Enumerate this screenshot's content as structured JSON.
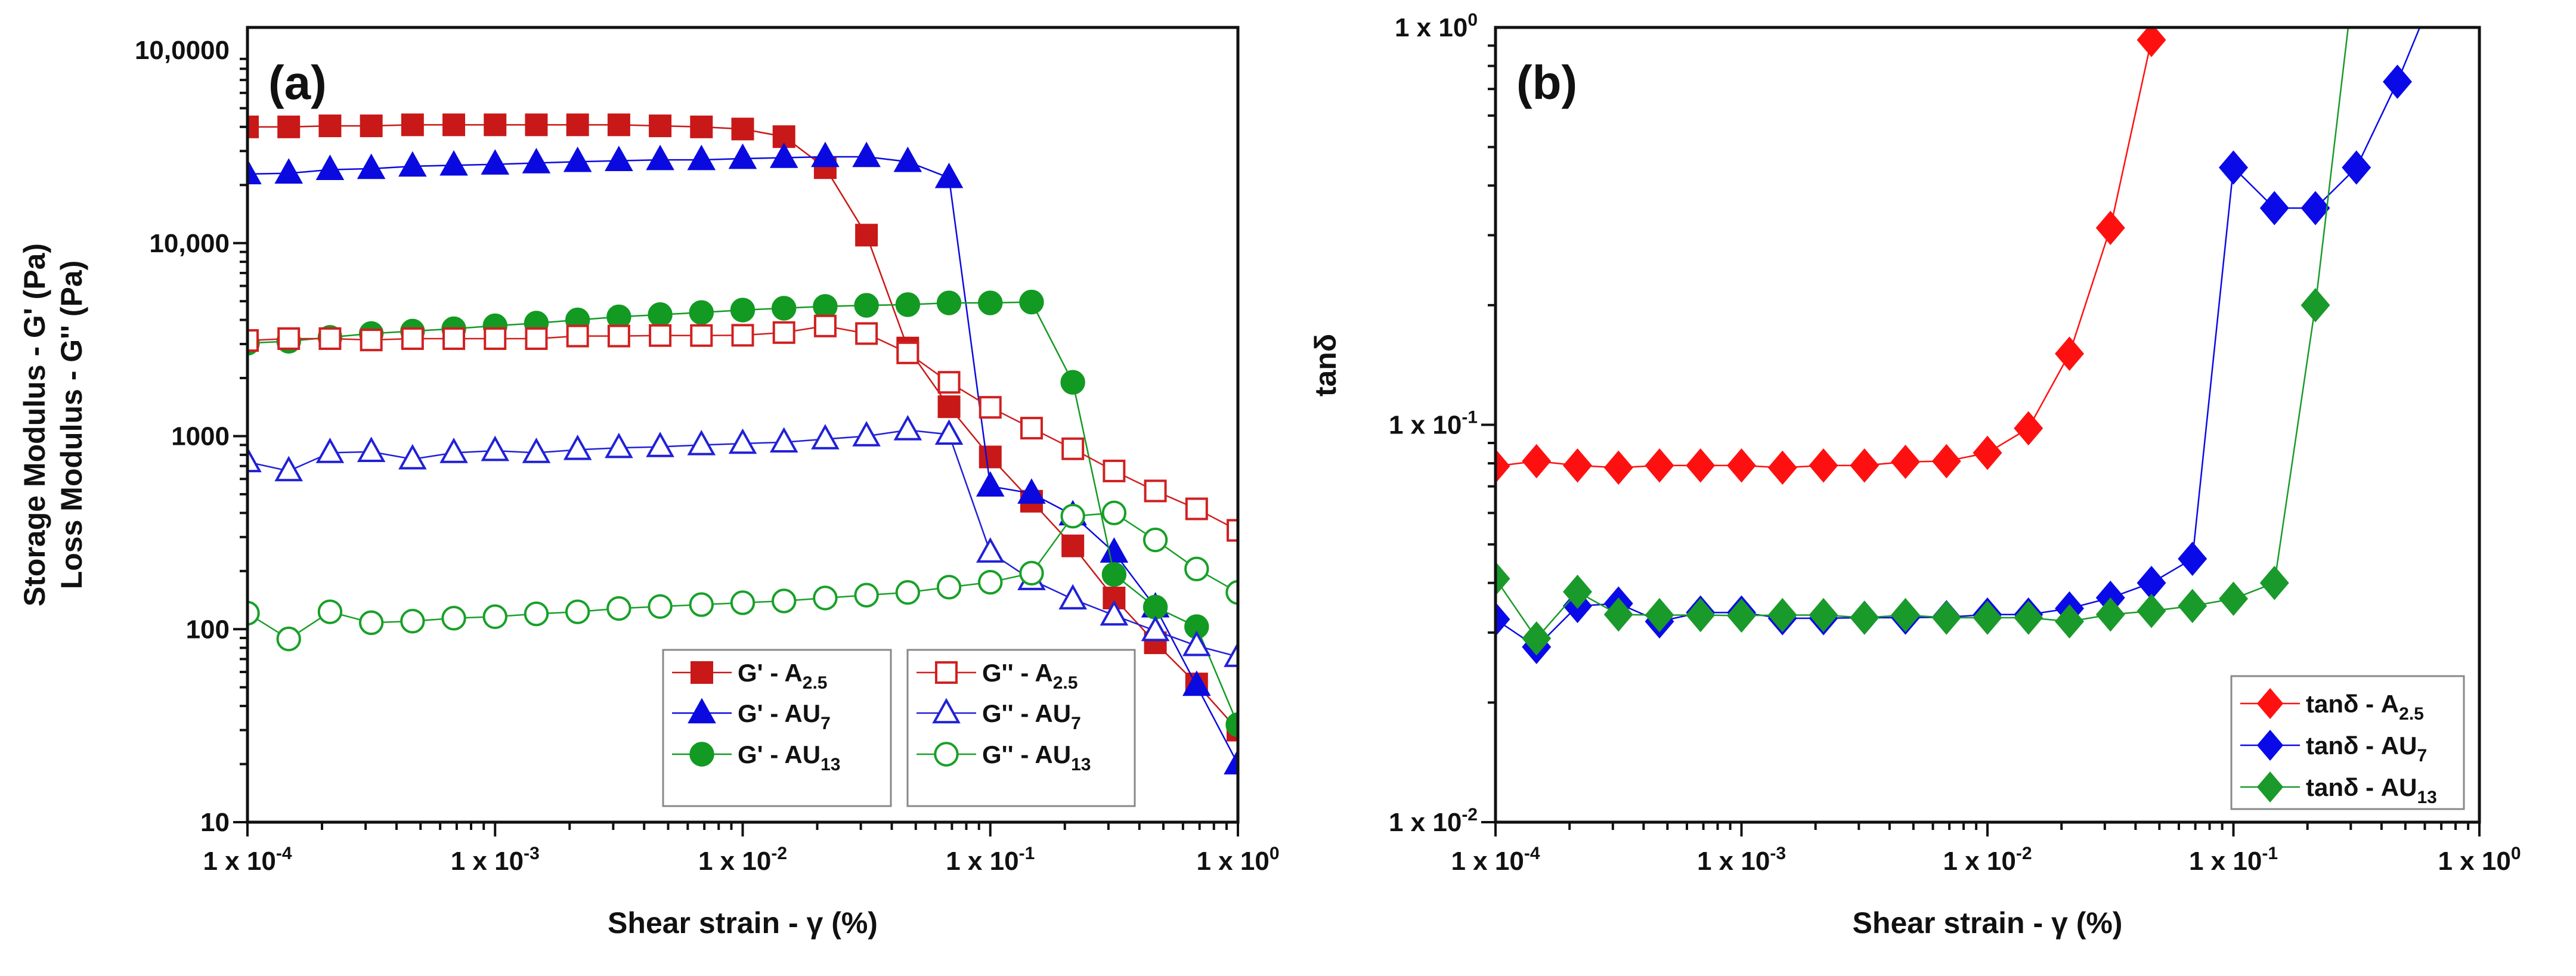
{
  "chart_data": [
    {
      "type": "line",
      "panel_label": "(a)",
      "xlabel": "Shear strain - γ (%)",
      "ylabel_lines": [
        "Storage Modulus - G' (Pa)",
        "Loss Modulus - G'' (Pa)"
      ],
      "xscale": "log",
      "yscale": "log",
      "xlim": [
        0.0001,
        1
      ],
      "ylim": [
        10,
        100000
      ],
      "xticks": [
        {
          "v": 0.0001,
          "base": "1 x 10",
          "exp": "-4"
        },
        {
          "v": 0.001,
          "base": "1 x 10",
          "exp": "-3"
        },
        {
          "v": 0.01,
          "base": "1 x 10",
          "exp": "-2"
        },
        {
          "v": 0.1,
          "base": "1 x 10",
          "exp": "-1"
        },
        {
          "v": 1,
          "base": "1 x 10",
          "exp": "0"
        }
      ],
      "yticks": [
        {
          "v": 10,
          "base": "10",
          "exp": ""
        },
        {
          "v": 100,
          "base": "100",
          "exp": ""
        },
        {
          "v": 1000,
          "base": "1000",
          "exp": ""
        },
        {
          "v": 10000,
          "base": "10,000",
          "exp": ""
        },
        {
          "v": 100000,
          "base": "10,0000",
          "exp": ""
        }
      ],
      "legend_position": "bottom-right",
      "series": [
        {
          "name": "G' - A",
          "sub": "2.5",
          "color": "#c81818",
          "marker": "square",
          "filled": true,
          "values": [
            40000,
            40000,
            40500,
            40500,
            41000,
            41000,
            41000,
            41000,
            41000,
            41000,
            40500,
            40000,
            39000,
            35600,
            24600,
            11000,
            2860,
            1420,
            780,
            460,
            270,
            145,
            85,
            52,
            30
          ]
        },
        {
          "name": "G' - AU",
          "sub": "7",
          "color": "#0a0ae0",
          "marker": "triangle",
          "filled": true,
          "values": [
            22800,
            23000,
            24000,
            24300,
            25000,
            25300,
            25600,
            26000,
            26400,
            26700,
            27000,
            27000,
            27400,
            27700,
            28000,
            28000,
            26400,
            21800,
            550,
            505,
            390,
            250,
            130,
            51,
            20
          ]
        },
        {
          "name": "G' - AU",
          "sub": "13",
          "color": "#129a22",
          "marker": "circle",
          "filled": true,
          "values": [
            3030,
            3100,
            3250,
            3400,
            3500,
            3600,
            3730,
            3850,
            4000,
            4150,
            4260,
            4370,
            4500,
            4600,
            4700,
            4760,
            4800,
            4900,
            4900,
            4950,
            1900,
            192,
            130,
            103,
            32
          ]
        },
        {
          "name": "G'' - A",
          "sub": "2.5",
          "color": "#d02020",
          "marker": "square",
          "filled": false,
          "values": [
            3130,
            3200,
            3200,
            3150,
            3200,
            3200,
            3200,
            3200,
            3300,
            3300,
            3320,
            3320,
            3330,
            3440,
            3720,
            3400,
            2700,
            1900,
            1410,
            1100,
            860,
            660,
            520,
            420,
            325
          ]
        },
        {
          "name": "G'' - AU",
          "sub": "7",
          "color": "#2020d8",
          "marker": "triangle",
          "filled": false,
          "values": [
            735,
            660,
            820,
            830,
            760,
            820,
            840,
            820,
            850,
            870,
            880,
            900,
            915,
            930,
            965,
            1000,
            1075,
            1020,
            250,
            180,
            143,
            118,
            98,
            82,
            72
          ]
        },
        {
          "name": "G'' - AU",
          "sub": "13",
          "color": "#18a028",
          "marker": "circle",
          "filled": false,
          "values": [
            121,
            89,
            123,
            108,
            110,
            114,
            116,
            120,
            123,
            128,
            131,
            134,
            137,
            140,
            145,
            150,
            155,
            165,
            175,
            195,
            385,
            400,
            290,
            205,
            155
          ]
        }
      ]
    },
    {
      "type": "line",
      "panel_label": "(b)",
      "xlabel": "Shear strain - γ (%)",
      "ylabel": "tanδ",
      "xscale": "log",
      "yscale": "log",
      "xlim": [
        0.0001,
        1
      ],
      "ylim": [
        0.01,
        1
      ],
      "xticks": [
        {
          "v": 0.0001,
          "base": "1 x 10",
          "exp": "-4"
        },
        {
          "v": 0.001,
          "base": "1 x 10",
          "exp": "-3"
        },
        {
          "v": 0.01,
          "base": "1 x 10",
          "exp": "-2"
        },
        {
          "v": 0.1,
          "base": "1 x 10",
          "exp": "-1"
        },
        {
          "v": 1,
          "base": "1 x 10",
          "exp": "0"
        }
      ],
      "yticks": [
        {
          "v": 0.01,
          "base": "1 x 10",
          "exp": "-2"
        },
        {
          "v": 0.1,
          "base": "1 x 10",
          "exp": "-1"
        },
        {
          "v": 1,
          "base": "1 x 10",
          "exp": "0"
        }
      ],
      "legend_position": "bottom-right",
      "series": [
        {
          "name": "tanδ - A",
          "sub": "2.5",
          "color": "#ff1010",
          "marker": "diamond",
          "filled": true,
          "values": [
            0.0787,
            0.081,
            0.079,
            0.078,
            0.079,
            0.079,
            0.079,
            0.078,
            0.079,
            0.079,
            0.0807,
            0.081,
            0.085,
            0.098,
            0.151,
            0.313,
            0.93
          ]
        },
        {
          "name": "tanδ - AU",
          "sub": "7",
          "color": "#0a0ae8",
          "marker": "diamond",
          "filled": true,
          "values": [
            0.0324,
            0.0276,
            0.035,
            0.0355,
            0.032,
            0.0337,
            0.0337,
            0.0326,
            0.0326,
            0.0327,
            0.0327,
            0.0328,
            0.0333,
            0.0333,
            0.0345,
            0.0367,
            0.04,
            0.046,
            0.444,
            0.351,
            0.351,
            0.444,
            0.73,
            1.3
          ]
        },
        {
          "name": "tanδ - AU",
          "sub": "13",
          "color": "#1a9a2a",
          "marker": "diamond",
          "filled": true,
          "values": [
            0.041,
            0.029,
            0.038,
            0.0333,
            0.0332,
            0.0332,
            0.0331,
            0.0332,
            0.0332,
            0.0327,
            0.0332,
            0.0327,
            0.0327,
            0.0327,
            0.032,
            0.0333,
            0.034,
            0.035,
            0.0365,
            0.04,
            0.2,
            1.5
          ]
        }
      ]
    }
  ],
  "x_points_rule": "x = 10^(-4 + i/6)"
}
